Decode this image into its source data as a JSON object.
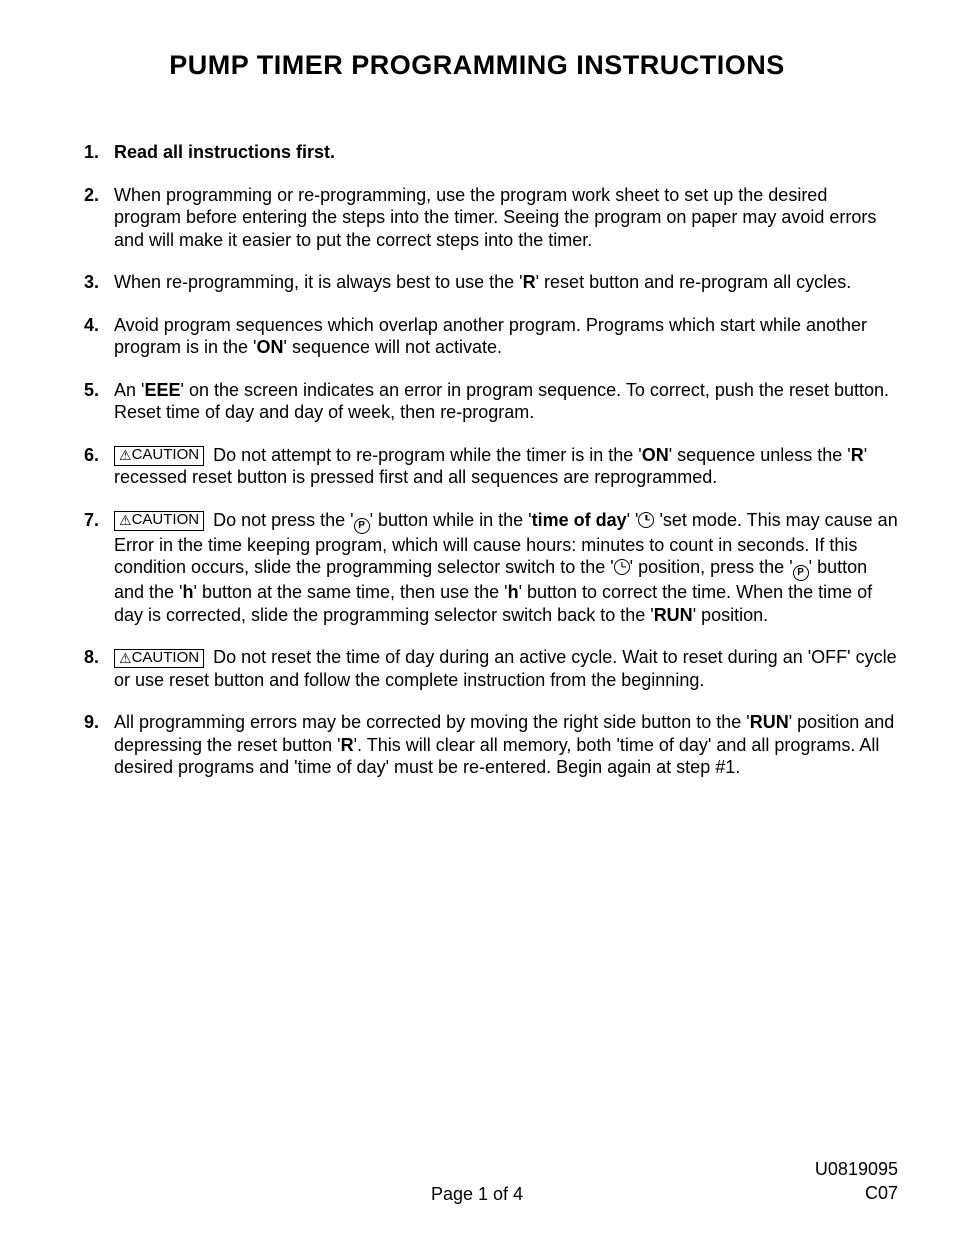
{
  "title": "PUMP TIMER PROGRAMMING INSTRUCTIONS",
  "caution_label": "CAUTION",
  "items": {
    "1": {
      "num": "1.",
      "text": "Read all instructions first.",
      "bold_full": true
    },
    "2": {
      "num": "2.",
      "text": "When programming or re-programming, use the program work sheet to set up the desired program before entering the steps into the timer.  Seeing the program on paper may avoid errors and will make it easier to put the correct steps into the timer."
    },
    "3": {
      "num": "3.",
      "pre": "When re-programming, it is always best to use the '",
      "bold1": "R",
      "post": "' reset button and re-program all cycles."
    },
    "4": {
      "num": "4.",
      "pre": "Avoid program sequences which overlap another program.  Programs which start while another program is in the '",
      "bold1": "ON",
      "post": "' sequence will not activate."
    },
    "5": {
      "num": "5.",
      "pre": "An '",
      "bold1": "EEE",
      "post": "' on the screen indicates an error in program sequence.  To correct, push the reset button. Reset time of day and day of week, then re-program."
    },
    "6": {
      "num": "6.",
      "pre": "Do not attempt to re-program while the timer is in the '",
      "bold1": "ON",
      "mid1": "' sequence unless the '",
      "bold2": "R",
      "post": "' recessed reset button is pressed first and all sequences are reprogrammed."
    },
    "7": {
      "num": "7.",
      "a": "Do not press the '",
      "b": "' button while in the '",
      "bold_tod": "time of day",
      "c": "' '",
      "d": " 'set mode.  This may cause an Error in the time keeping program, which will cause hours: minutes to count in seconds. If this condition occurs, slide the programming selector switch to the '",
      "e": "' position, press the '",
      "f": "' button and the '",
      "bold_h1": "h",
      "g": "' button at the same time, then use the '",
      "bold_h2": "h",
      "h": "' button to correct the time.  When the time of day is corrected, slide the programming selector switch back to the '",
      "bold_run": "RUN",
      "i": "' position."
    },
    "8": {
      "num": "8.",
      "text": "Do not reset the time of day during an active cycle.  Wait to reset during an 'OFF' cycle or use reset button and follow the complete instruction from the beginning."
    },
    "9": {
      "num": "9.",
      "a": "All programming errors may be corrected by moving the right side button to the '",
      "bold_run": "RUN",
      "b": "' position and depressing the reset button '",
      "bold_r": "R",
      "c": "'.  This will clear all memory, both 'time of day' and all programs.  All desired programs and 'time of day' must be re-entered.  Begin again at step #1."
    }
  },
  "footer": {
    "center": "Page 1 of 4",
    "right_top": "U0819095",
    "right_bottom": "C07"
  }
}
